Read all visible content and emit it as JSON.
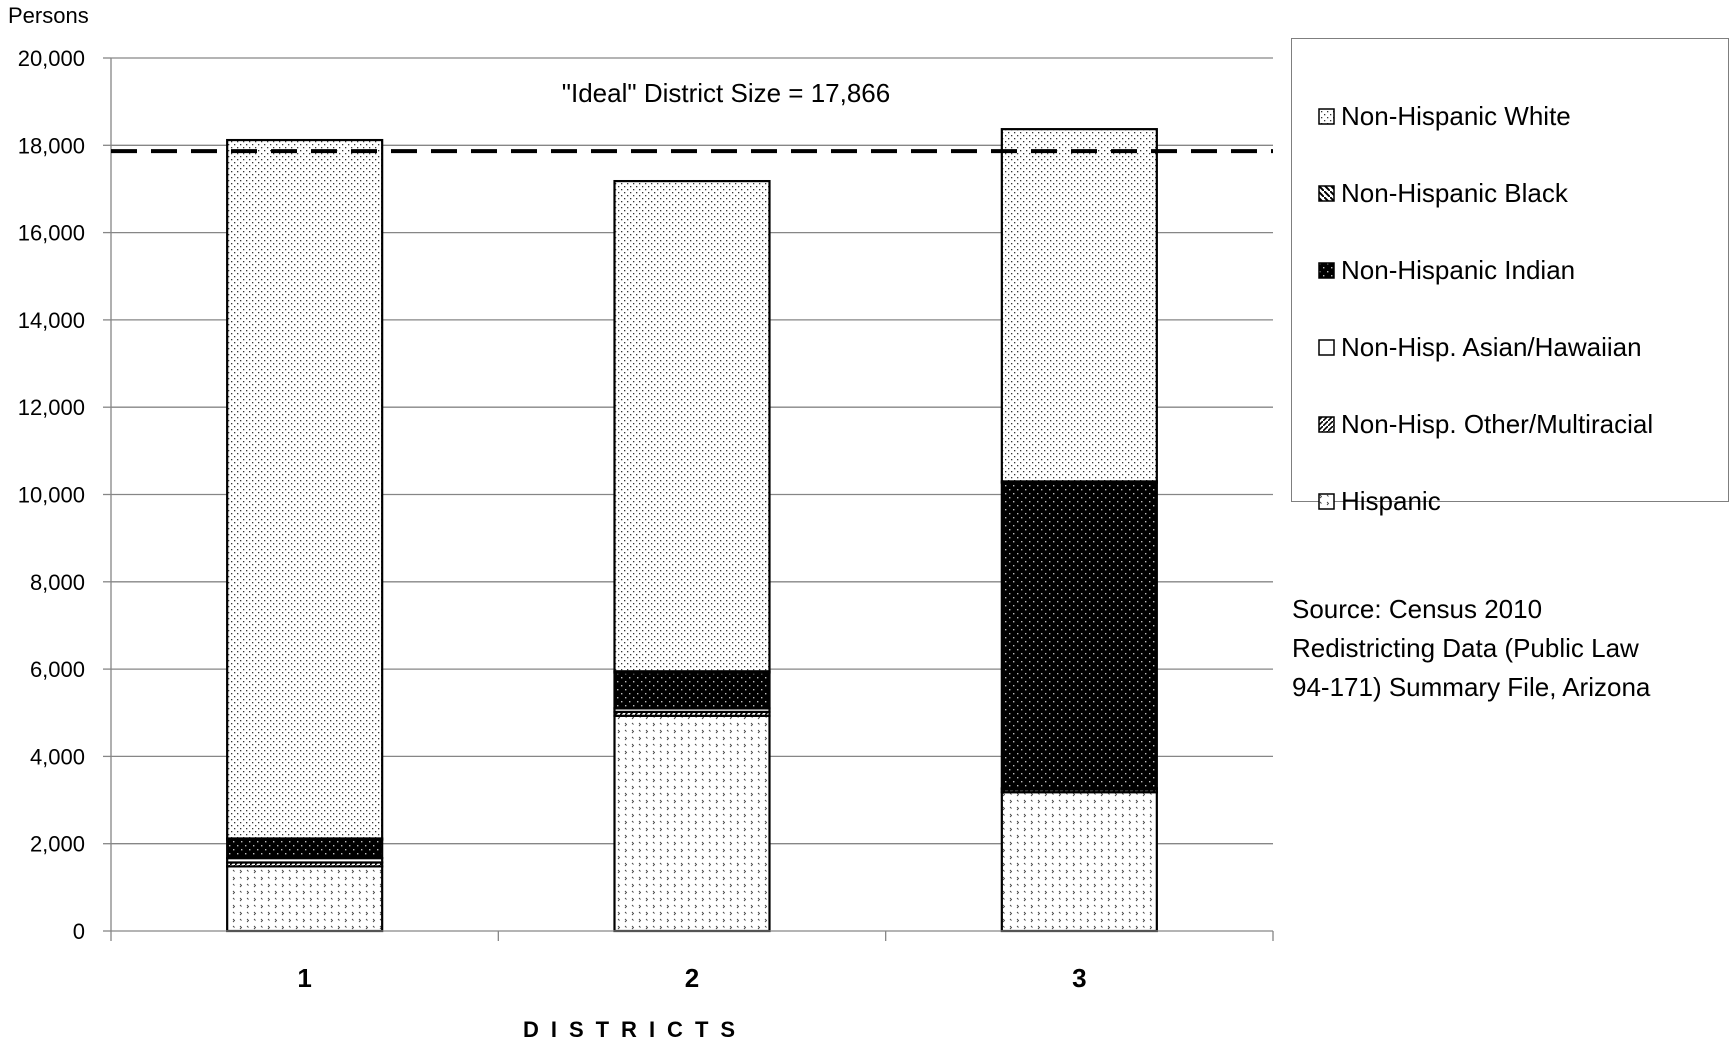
{
  "chart_data": {
    "type": "bar",
    "stacked": true,
    "ylabel": "Persons",
    "xlabel": "DISTRICTS",
    "ylim": [
      0,
      20000
    ],
    "yticks": [
      "0",
      "2,000",
      "4,000",
      "6,000",
      "8,000",
      "10,000",
      "12,000",
      "14,000",
      "16,000",
      "18,000",
      "20,000"
    ],
    "categories": [
      "1",
      "2",
      "3"
    ],
    "grid": true,
    "legend_position": "right",
    "series": [
      {
        "name": "Hispanic",
        "values": [
          1480,
          4930,
          3180
        ],
        "pattern": "hispanic-pattern"
      },
      {
        "name": "Non-Hisp. Other/Multiracial",
        "values": [
          90,
          90,
          60
        ],
        "pattern": "other-pattern"
      },
      {
        "name": "Non-Hisp. Asian/Hawaiian",
        "values": [
          100,
          80,
          30
        ],
        "pattern": "asian-pattern"
      },
      {
        "name": "Non-Hispanic Indian",
        "values": [
          420,
          820,
          7000
        ],
        "pattern": "indian-pattern"
      },
      {
        "name": "Non-Hispanic Black",
        "values": [
          30,
          30,
          30
        ],
        "pattern": "black-pattern"
      },
      {
        "name": "Non-Hispanic White",
        "values": [
          16000,
          11230,
          8070
        ],
        "pattern": "white-pattern"
      }
    ],
    "reference_line": {
      "value": 17866,
      "label": "\"Ideal\" District Size = 17,866"
    }
  },
  "legend": {
    "items": [
      {
        "label": "Non-Hispanic White",
        "icon": "white-pattern-swatch"
      },
      {
        "label": "Non-Hispanic Black",
        "icon": "black-pattern-swatch"
      },
      {
        "label": "Non-Hispanic Indian",
        "icon": "indian-pattern-swatch"
      },
      {
        "label": "Non-Hisp. Asian/Hawaiian",
        "icon": "asian-pattern-swatch"
      },
      {
        "label": "Non-Hisp. Other/Multiracial",
        "icon": "other-pattern-swatch"
      },
      {
        "label": "Hispanic",
        "icon": "hispanic-pattern-swatch"
      }
    ]
  },
  "source": {
    "lines": [
      "Source:  Census 2010",
      "Redistricting Data (Public Law",
      "94-171) Summary File, Arizona"
    ]
  },
  "colors": {
    "bar_outline": "#000000",
    "grid": "#868686",
    "axis": "#868686",
    "ideal_line": "#000000"
  }
}
